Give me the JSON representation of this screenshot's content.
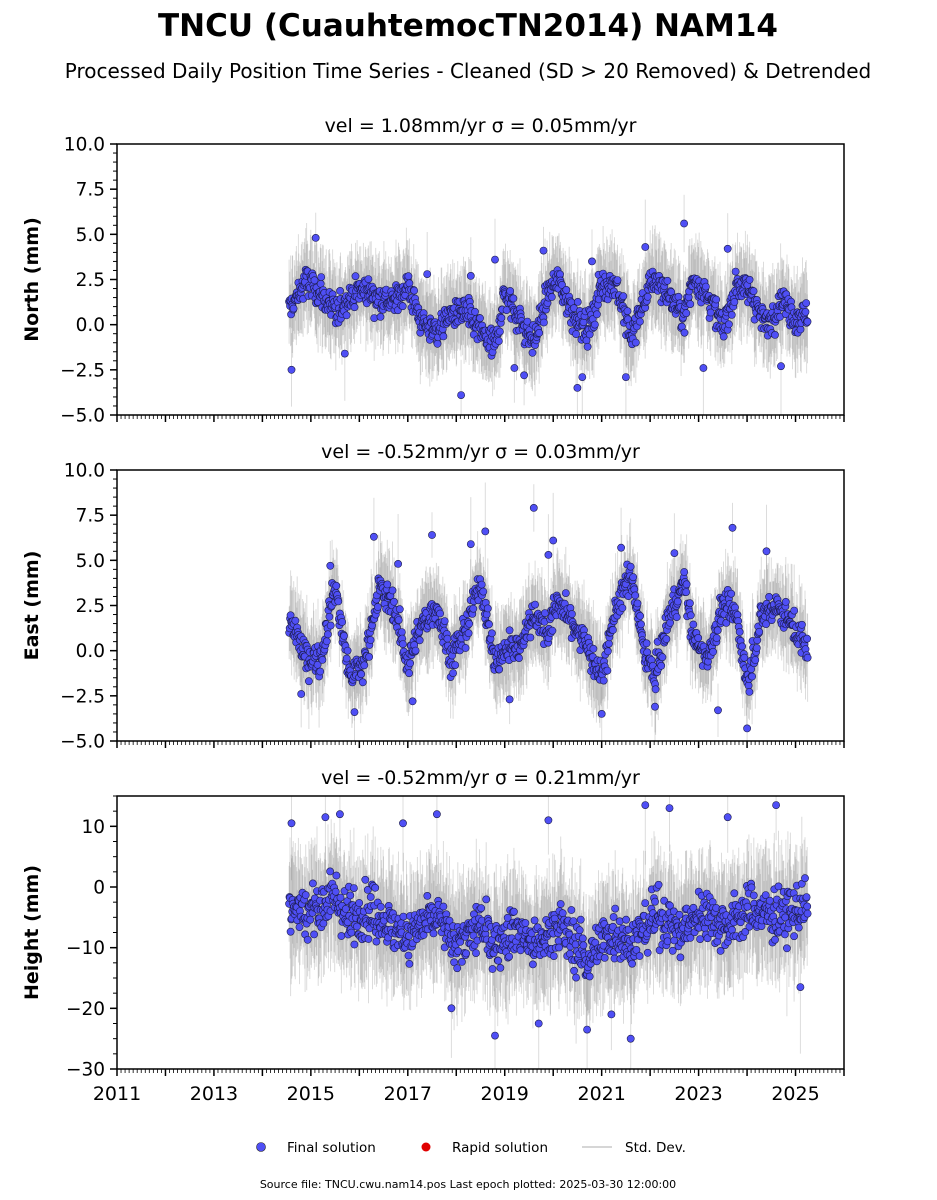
{
  "title": "TNCU (CuauhtemocTN2014) NAM14",
  "subtitle": "Processed Daily Position Time Series - Cleaned (SD > 20 Removed) & Detrended",
  "legend": {
    "final": "Final solution",
    "rapid": "Rapid solution",
    "std": "Std. Dev."
  },
  "footer": "Source file: TNCU.cwu.nam14.pos  Last epoch plotted: 2025-03-30 12:00:00",
  "colors": {
    "final": "#4f4ff5",
    "rapid": "#e00000",
    "std": "#c8c8c8"
  },
  "chart_data": [
    {
      "type": "scatter",
      "title": "vel = 1.08mm/yr   σ = 0.05mm/yr",
      "ylabel": "North (mm)",
      "xlim": [
        2011,
        2026
      ],
      "ylim": [
        -5,
        10
      ],
      "yticks": [
        -5.0,
        -2.5,
        0.0,
        2.5,
        5.0,
        7.5,
        10.0
      ],
      "ytick_labels": [
        "−5.0",
        "−2.5",
        "0.0",
        "2.5",
        "5.0",
        "7.5",
        "10.0"
      ],
      "data_range": [
        2014.55,
        2025.25
      ],
      "series": [
        {
          "name": "Final solution",
          "seasonal_points": [
            [
              2014.6,
              1.0
            ],
            [
              2014.9,
              2.4
            ],
            [
              2015.2,
              1.7
            ],
            [
              2015.5,
              0.6
            ],
            [
              2015.8,
              1.6
            ],
            [
              2016.1,
              2.0
            ],
            [
              2016.4,
              1.5
            ],
            [
              2016.7,
              1.2
            ],
            [
              2017.0,
              2.2
            ],
            [
              2017.3,
              0.0
            ],
            [
              2017.6,
              -0.3
            ],
            [
              2017.9,
              0.6
            ],
            [
              2018.2,
              0.7
            ],
            [
              2018.5,
              -0.4
            ],
            [
              2018.8,
              -1.2
            ],
            [
              2019.0,
              1.8
            ],
            [
              2019.3,
              0.3
            ],
            [
              2019.6,
              -1.0
            ],
            [
              2019.9,
              1.8
            ],
            [
              2020.1,
              2.5
            ],
            [
              2020.4,
              0.7
            ],
            [
              2020.7,
              -0.4
            ],
            [
              2021.0,
              2.2
            ],
            [
              2021.3,
              2.3
            ],
            [
              2021.6,
              -0.8
            ],
            [
              2021.9,
              1.5
            ],
            [
              2022.1,
              2.6
            ],
            [
              2022.4,
              1.5
            ],
            [
              2022.7,
              0.4
            ],
            [
              2022.9,
              2.6
            ],
            [
              2023.2,
              1.6
            ],
            [
              2023.5,
              -0.2
            ],
            [
              2023.8,
              2.3
            ],
            [
              2024.1,
              1.7
            ],
            [
              2024.4,
              -0.1
            ],
            [
              2024.7,
              1.4
            ],
            [
              2025.0,
              0.4
            ],
            [
              2025.25,
              0.6
            ]
          ],
          "outliers": [
            [
              2014.6,
              -2.5
            ],
            [
              2015.1,
              4.8
            ],
            [
              2015.7,
              -1.6
            ],
            [
              2017.4,
              2.8
            ],
            [
              2018.1,
              -3.9
            ],
            [
              2018.3,
              2.7
            ],
            [
              2018.8,
              3.6
            ],
            [
              2019.2,
              -2.4
            ],
            [
              2019.4,
              -2.8
            ],
            [
              2019.8,
              4.1
            ],
            [
              2020.5,
              -3.5
            ],
            [
              2020.6,
              -2.9
            ],
            [
              2020.8,
              3.5
            ],
            [
              2021.5,
              -2.9
            ],
            [
              2021.9,
              4.3
            ],
            [
              2022.7,
              5.6
            ],
            [
              2023.1,
              -2.4
            ],
            [
              2023.6,
              4.2
            ],
            [
              2024.7,
              -2.3
            ]
          ]
        }
      ]
    },
    {
      "type": "scatter",
      "title": "vel = -0.52mm/yr   σ = 0.03mm/yr",
      "ylabel": "East (mm)",
      "xlim": [
        2011,
        2026
      ],
      "ylim": [
        -5,
        10
      ],
      "yticks": [
        -5.0,
        -2.5,
        0.0,
        2.5,
        5.0,
        7.5,
        10.0
      ],
      "ytick_labels": [
        "−5.0",
        "−2.5",
        "0.0",
        "2.5",
        "5.0",
        "7.5",
        "10.0"
      ],
      "data_range": [
        2014.55,
        2025.25
      ],
      "series": [
        {
          "name": "Final solution",
          "seasonal_points": [
            [
              2014.6,
              1.5
            ],
            [
              2014.9,
              -0.4
            ],
            [
              2015.2,
              -0.5
            ],
            [
              2015.5,
              3.6
            ],
            [
              2015.8,
              -1.4
            ],
            [
              2016.1,
              -0.8
            ],
            [
              2016.4,
              3.5
            ],
            [
              2016.7,
              2.6
            ],
            [
              2017.0,
              -0.8
            ],
            [
              2017.3,
              1.5
            ],
            [
              2017.6,
              2.4
            ],
            [
              2017.9,
              -0.5
            ],
            [
              2018.2,
              1.2
            ],
            [
              2018.5,
              3.8
            ],
            [
              2018.8,
              -0.7
            ],
            [
              2019.0,
              0.0
            ],
            [
              2019.3,
              0.2
            ],
            [
              2019.6,
              2.0
            ],
            [
              2019.9,
              1.0
            ],
            [
              2020.1,
              2.8
            ],
            [
              2020.4,
              1.5
            ],
            [
              2020.7,
              0.2
            ],
            [
              2021.0,
              -1.5
            ],
            [
              2021.3,
              2.5
            ],
            [
              2021.6,
              4.1
            ],
            [
              2021.9,
              -0.2
            ],
            [
              2022.1,
              -1.5
            ],
            [
              2022.4,
              2.0
            ],
            [
              2022.7,
              3.8
            ],
            [
              2022.9,
              0.5
            ],
            [
              2023.2,
              -0.3
            ],
            [
              2023.5,
              2.6
            ],
            [
              2023.8,
              1.8
            ],
            [
              2024.0,
              -1.9
            ],
            [
              2024.3,
              1.8
            ],
            [
              2024.6,
              2.6
            ],
            [
              2024.9,
              1.5
            ],
            [
              2025.25,
              0.0
            ]
          ],
          "outliers": [
            [
              2014.8,
              -2.4
            ],
            [
              2015.4,
              4.7
            ],
            [
              2015.9,
              -3.4
            ],
            [
              2016.3,
              6.3
            ],
            [
              2016.8,
              4.8
            ],
            [
              2017.1,
              -2.8
            ],
            [
              2017.5,
              6.4
            ],
            [
              2018.3,
              5.9
            ],
            [
              2018.6,
              6.6
            ],
            [
              2019.1,
              -2.7
            ],
            [
              2019.6,
              7.9
            ],
            [
              2019.9,
              5.3
            ],
            [
              2020.0,
              6.1
            ],
            [
              2021.0,
              -3.5
            ],
            [
              2021.4,
              5.7
            ],
            [
              2022.1,
              -3.1
            ],
            [
              2022.5,
              5.4
            ],
            [
              2023.4,
              -3.3
            ],
            [
              2023.7,
              6.8
            ],
            [
              2024.0,
              -4.3
            ],
            [
              2024.4,
              5.5
            ]
          ]
        }
      ]
    },
    {
      "type": "scatter",
      "title": "vel = -0.52mm/yr   σ = 0.21mm/yr",
      "ylabel": "Height (mm)",
      "xlim": [
        2011,
        2026
      ],
      "ylim": [
        -30,
        15
      ],
      "yticks": [
        -30,
        -20,
        -10,
        0,
        10
      ],
      "ytick_labels": [
        "−30",
        "−20",
        "−10",
        "0",
        "10"
      ],
      "data_range": [
        2014.55,
        2025.25
      ],
      "series": [
        {
          "name": "Final solution",
          "seasonal_points": [
            [
              2014.6,
              -2.5
            ],
            [
              2014.9,
              -4.0
            ],
            [
              2015.2,
              -3.0
            ],
            [
              2015.5,
              -1.5
            ],
            [
              2015.8,
              -5.5
            ],
            [
              2016.1,
              -4.0
            ],
            [
              2016.4,
              -4.5
            ],
            [
              2016.7,
              -7.0
            ],
            [
              2017.0,
              -8.0
            ],
            [
              2017.3,
              -6.0
            ],
            [
              2017.6,
              -5.0
            ],
            [
              2017.9,
              -9.0
            ],
            [
              2018.2,
              -8.5
            ],
            [
              2018.5,
              -6.5
            ],
            [
              2018.8,
              -9.5
            ],
            [
              2019.0,
              -8.0
            ],
            [
              2019.3,
              -7.0
            ],
            [
              2019.6,
              -10.0
            ],
            [
              2019.9,
              -8.0
            ],
            [
              2020.1,
              -6.0
            ],
            [
              2020.4,
              -9.0
            ],
            [
              2020.7,
              -12.0
            ],
            [
              2021.0,
              -9.0
            ],
            [
              2021.3,
              -7.0
            ],
            [
              2021.6,
              -9.5
            ],
            [
              2021.9,
              -7.0
            ],
            [
              2022.1,
              -4.5
            ],
            [
              2022.4,
              -6.0
            ],
            [
              2022.7,
              -8.0
            ],
            [
              2022.9,
              -5.0
            ],
            [
              2023.2,
              -4.0
            ],
            [
              2023.5,
              -6.5
            ],
            [
              2023.8,
              -5.5
            ],
            [
              2024.1,
              -3.5
            ],
            [
              2024.4,
              -4.5
            ],
            [
              2024.7,
              -5.0
            ],
            [
              2025.0,
              -4.0
            ],
            [
              2025.25,
              -3.0
            ]
          ],
          "outliers": [
            [
              2014.6,
              10.5
            ],
            [
              2015.3,
              11.5
            ],
            [
              2015.6,
              12.0
            ],
            [
              2016.9,
              10.5
            ],
            [
              2017.6,
              12.0
            ],
            [
              2017.9,
              -20.0
            ],
            [
              2018.8,
              -24.5
            ],
            [
              2019.7,
              -22.5
            ],
            [
              2019.9,
              11.0
            ],
            [
              2020.7,
              -23.5
            ],
            [
              2021.2,
              -21.0
            ],
            [
              2021.6,
              -25.0
            ],
            [
              2021.9,
              13.5
            ],
            [
              2022.4,
              13.0
            ],
            [
              2023.6,
              11.5
            ],
            [
              2024.6,
              13.5
            ],
            [
              2025.1,
              -16.5
            ]
          ]
        }
      ]
    }
  ],
  "xaxis": {
    "tick_labels": [
      "2011",
      "2013",
      "2015",
      "2017",
      "2019",
      "2021",
      "2023",
      "2025"
    ]
  }
}
